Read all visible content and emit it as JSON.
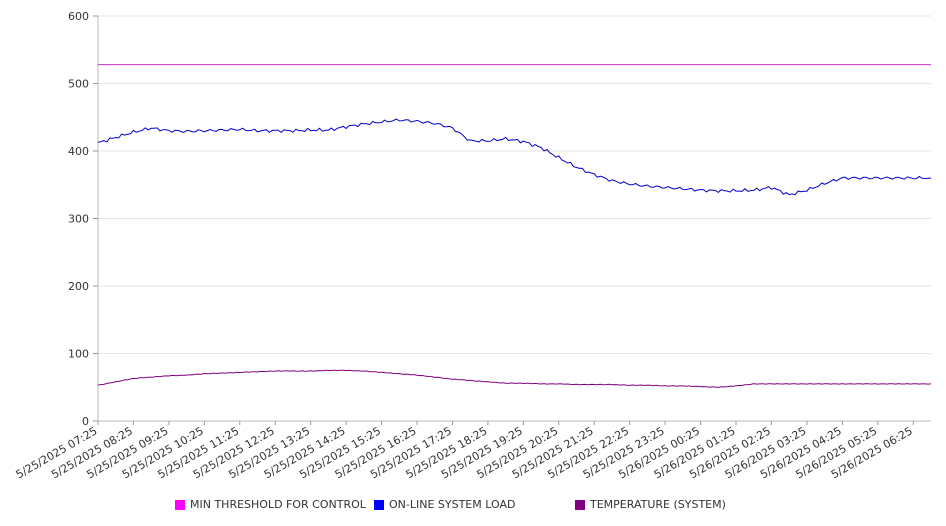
{
  "chart_data": {
    "type": "line",
    "title": "",
    "xlabel": "",
    "ylabel": "",
    "ylim": [
      0,
      600
    ],
    "y_ticks": [
      0,
      100,
      200,
      300,
      400,
      500,
      600
    ],
    "grid": "horizontal",
    "legend_position": "bottom",
    "x_tick_labels": [
      "5/25/2025 07:25",
      "5/25/2025 08:25",
      "5/25/2025 09:25",
      "5/25/2025 10:25",
      "5/25/2025 11:25",
      "5/25/2025 12:25",
      "5/25/2025 13:25",
      "5/25/2025 14:25",
      "5/25/2025 15:25",
      "5/25/2025 16:25",
      "5/25/2025 17:25",
      "5/25/2025 18:25",
      "5/25/2025 19:25",
      "5/25/2025 20:25",
      "5/25/2025 21:25",
      "5/25/2025 22:25",
      "5/25/2025 23:25",
      "5/26/2025 00:25",
      "5/26/2025 01:25",
      "5/26/2025 02:25",
      "5/26/2025 03:25",
      "5/26/2025 04:25",
      "5/26/2025 05:25",
      "5/26/2025 06:25"
    ],
    "x": [
      "5/25/2025 07:25",
      "5/25/2025 07:55",
      "5/25/2025 08:25",
      "5/25/2025 08:55",
      "5/25/2025 09:25",
      "5/25/2025 09:55",
      "5/25/2025 10:25",
      "5/25/2025 10:55",
      "5/25/2025 11:25",
      "5/25/2025 11:55",
      "5/25/2025 12:25",
      "5/25/2025 12:55",
      "5/25/2025 13:25",
      "5/25/2025 13:55",
      "5/25/2025 14:25",
      "5/25/2025 14:55",
      "5/25/2025 15:25",
      "5/25/2025 15:55",
      "5/25/2025 16:25",
      "5/25/2025 16:55",
      "5/25/2025 17:25",
      "5/25/2025 17:55",
      "5/25/2025 18:25",
      "5/25/2025 18:55",
      "5/25/2025 19:25",
      "5/25/2025 19:55",
      "5/25/2025 20:25",
      "5/25/2025 20:55",
      "5/25/2025 21:25",
      "5/25/2025 21:55",
      "5/25/2025 22:25",
      "5/25/2025 22:55",
      "5/25/2025 23:25",
      "5/25/2025 23:55",
      "5/26/2025 00:25",
      "5/26/2025 00:55",
      "5/26/2025 01:25",
      "5/26/2025 01:55",
      "5/26/2025 02:25",
      "5/26/2025 02:55",
      "5/26/2025 03:25",
      "5/26/2025 03:55",
      "5/26/2025 04:25",
      "5/26/2025 04:55",
      "5/26/2025 05:25",
      "5/26/2025 05:55",
      "5/26/2025 06:25",
      "5/26/2025 06:55"
    ],
    "series": [
      {
        "name": "MIN THRESHOLD FOR CONTROL",
        "color": "#cc33cc",
        "values": [
          528,
          528,
          528,
          528,
          528,
          528,
          528,
          528,
          528,
          528,
          528,
          528,
          528,
          528,
          528,
          528,
          528,
          528,
          528,
          528,
          528,
          528,
          528,
          528,
          528,
          528,
          528,
          528,
          528,
          528,
          528,
          528,
          528,
          528,
          528,
          528,
          528,
          528,
          528,
          528,
          528,
          528,
          528,
          528,
          528,
          528,
          528,
          528
        ]
      },
      {
        "name": "ON-LINE SYSTEM LOAD",
        "color": "#0000cc",
        "values": [
          412,
          420,
          428,
          434,
          430,
          429,
          430,
          431,
          432,
          430,
          430,
          430,
          431,
          431,
          436,
          440,
          443,
          446,
          444,
          441,
          434,
          415,
          415,
          418,
          414,
          405,
          390,
          376,
          365,
          356,
          351,
          348,
          346,
          344,
          342,
          341,
          341,
          342,
          346,
          335,
          342,
          352,
          360,
          360,
          360,
          360,
          360,
          360
        ]
      },
      {
        "name": "TEMPERATURE (SYSTEM)",
        "color": "#800080",
        "values": [
          53,
          58,
          63,
          65,
          67,
          68,
          70,
          71,
          72,
          73,
          74,
          74,
          74,
          75,
          75,
          74,
          72,
          70,
          68,
          65,
          62,
          60,
          58,
          56,
          56,
          55,
          55,
          54,
          54,
          54,
          53,
          53,
          52,
          52,
          51,
          50,
          52,
          55,
          55,
          55,
          55,
          55,
          55,
          55,
          55,
          55,
          55,
          55
        ]
      }
    ]
  }
}
